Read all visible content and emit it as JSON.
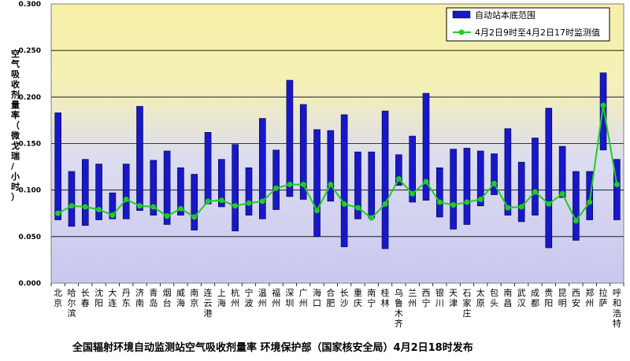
{
  "chart_data": {
    "type": "bar",
    "title": "全国辐射环境自动监测站空气吸收剂量率    环境保护部（国家核安全局）4月2日18时发布",
    "ylabel": "空气吸收剂量率（微戈瑞/小时）",
    "ylim": [
      0,
      0.3
    ],
    "yticks": [
      "0.000",
      "0.050",
      "0.100",
      "0.150",
      "0.200",
      "0.250",
      "0.300"
    ],
    "legend_position": "top-right",
    "categories": [
      "北京",
      "哈尔滨",
      "长春",
      "沈阳",
      "大连",
      "丹东",
      "济南",
      "青岛",
      "烟台",
      "威海",
      "南京",
      "连云港",
      "上海",
      "杭州",
      "宁波",
      "温州",
      "福州",
      "深圳",
      "广州",
      "海口",
      "合肥",
      "长沙",
      "重庆",
      "南宁",
      "桂林",
      "乌鲁木齐",
      "兰州",
      "西宁",
      "银川",
      "天津",
      "石家庄",
      "太原",
      "包头",
      "南昌",
      "武汉",
      "成都",
      "贵阳",
      "昆明",
      "西安",
      "郑州",
      "拉萨",
      "呼和浩特"
    ],
    "series": [
      {
        "name": "自动站本底范围",
        "style": "range-bar",
        "color": "#1818c8",
        "low": [
          0.068,
          0.061,
          0.062,
          0.068,
          0.069,
          0.069,
          0.078,
          0.073,
          0.063,
          0.073,
          0.057,
          0.085,
          0.082,
          0.056,
          0.073,
          0.069,
          0.079,
          0.093,
          0.09,
          0.05,
          0.088,
          0.039,
          0.069,
          0.07,
          0.037,
          0.105,
          0.087,
          0.089,
          0.071,
          0.058,
          0.063,
          0.083,
          0.095,
          0.073,
          0.066,
          0.073,
          0.038,
          0.092,
          0.046,
          0.068,
          0.143,
          0.068
        ],
        "high": [
          0.183,
          0.12,
          0.133,
          0.128,
          0.097,
          0.128,
          0.19,
          0.132,
          0.142,
          0.124,
          0.117,
          0.162,
          0.133,
          0.149,
          0.124,
          0.177,
          0.143,
          0.218,
          0.192,
          0.165,
          0.164,
          0.181,
          0.141,
          0.141,
          0.185,
          0.138,
          0.158,
          0.204,
          0.124,
          0.144,
          0.145,
          0.142,
          0.139,
          0.166,
          0.13,
          0.156,
          0.188,
          0.147,
          0.12,
          0.12,
          0.226,
          0.133
        ]
      },
      {
        "name": "4月2日9时至4月2日17时监测值",
        "style": "line",
        "color": "#22cc22",
        "values": [
          0.075,
          0.083,
          0.082,
          0.079,
          0.073,
          0.09,
          0.083,
          0.082,
          0.072,
          0.08,
          0.071,
          0.088,
          0.089,
          0.083,
          0.086,
          0.088,
          0.102,
          0.106,
          0.106,
          0.078,
          0.106,
          0.085,
          0.081,
          0.07,
          0.085,
          0.112,
          0.096,
          0.109,
          0.087,
          0.084,
          0.087,
          0.09,
          0.107,
          0.081,
          0.082,
          0.098,
          0.085,
          0.096,
          0.067,
          0.087,
          0.191,
          0.106
        ]
      }
    ]
  }
}
